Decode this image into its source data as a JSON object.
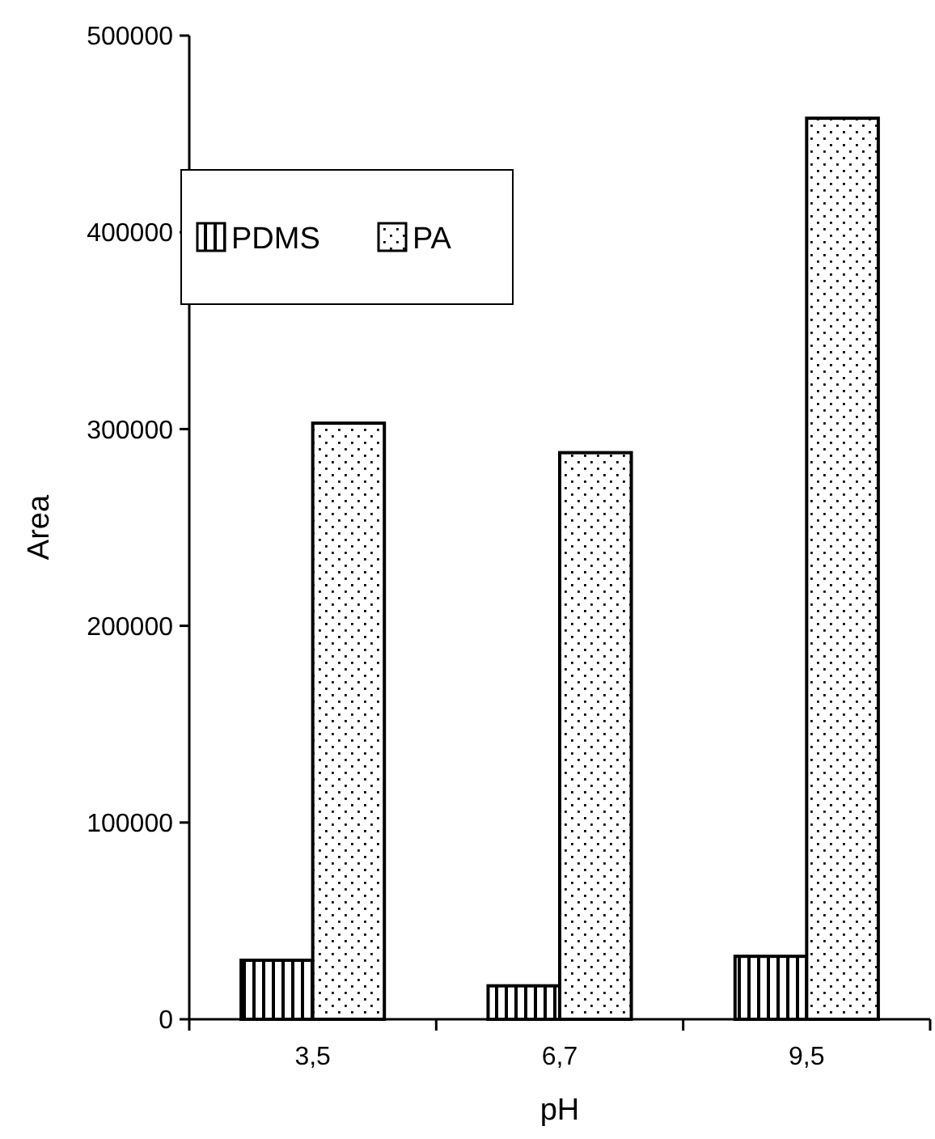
{
  "chart_data": {
    "type": "bar",
    "xlabel": "pH",
    "ylabel": "Area",
    "categories": [
      "3,5",
      "6,7",
      "9,5"
    ],
    "series": [
      {
        "name": "PDMS",
        "color": "#000000",
        "values": [
          30000,
          17000,
          32000
        ]
      },
      {
        "name": "PA",
        "color": "#000000",
        "values": [
          303000,
          288000,
          458000
        ]
      }
    ],
    "ylim": [
      0,
      500000
    ],
    "yticks": [
      0,
      100000,
      200000,
      300000,
      400000,
      500000
    ],
    "grid": false,
    "legend": "top left"
  }
}
